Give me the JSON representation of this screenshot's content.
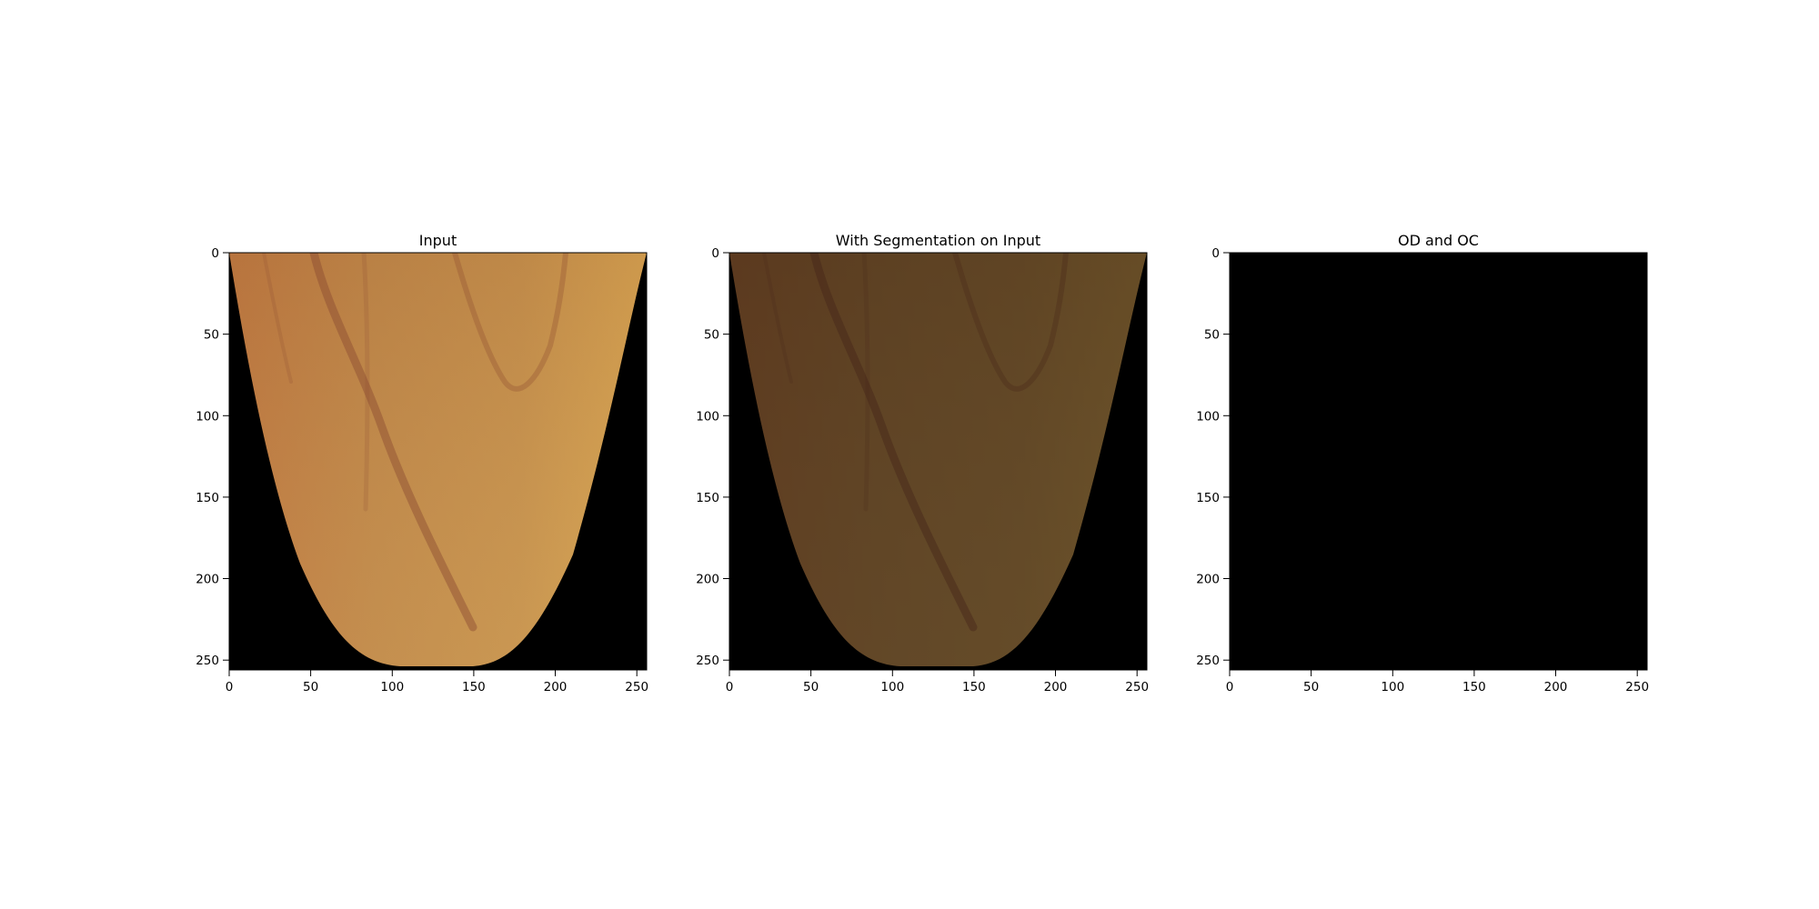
{
  "figure": {
    "panels": [
      {
        "title": "Input",
        "image": "fundus-crop",
        "tint": "original",
        "xticks": [
          "0",
          "50",
          "100",
          "150",
          "200",
          "250"
        ],
        "yticks": [
          "0",
          "50",
          "100",
          "150",
          "200",
          "250"
        ]
      },
      {
        "title": "With Segmentation on Input",
        "image": "fundus-crop",
        "tint": "darkened",
        "xticks": [
          "0",
          "50",
          "100",
          "150",
          "200",
          "250"
        ],
        "yticks": [
          "0",
          "50",
          "100",
          "150",
          "200",
          "250"
        ]
      },
      {
        "title": "OD and OC",
        "image": "blank-mask",
        "tint": "black",
        "xticks": [
          "0",
          "50",
          "100",
          "150",
          "200",
          "250"
        ],
        "yticks": [
          "0",
          "50",
          "100",
          "150",
          "200",
          "250"
        ]
      }
    ],
    "colors": {
      "background": "#000000",
      "fundus_left": "#c58447",
      "fundus_mid": "#c4944f",
      "fundus_right": "#d8a851",
      "vessel": "#8a4a30",
      "overlay_dark": "#000000"
    }
  }
}
